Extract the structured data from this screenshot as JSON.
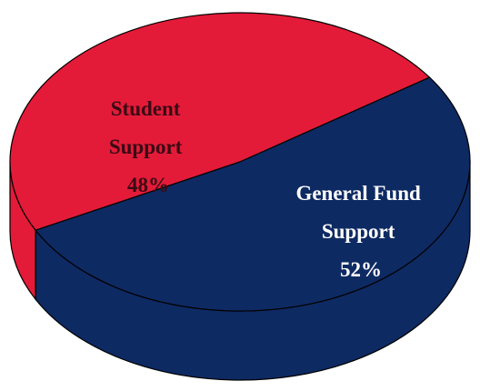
{
  "chart_data": {
    "type": "pie",
    "style": "3d",
    "slices": [
      {
        "line1": "Student",
        "line2": "Support",
        "pct_label": "48%",
        "value": 48,
        "color": "#E31B39"
      },
      {
        "line1": "General Fund",
        "line2": "Support",
        "pct_label": "52%",
        "value": 52,
        "color": "#0E2A63"
      }
    ],
    "label_colors": [
      "#3A0A14",
      "#FFFFFF"
    ],
    "title": ""
  }
}
